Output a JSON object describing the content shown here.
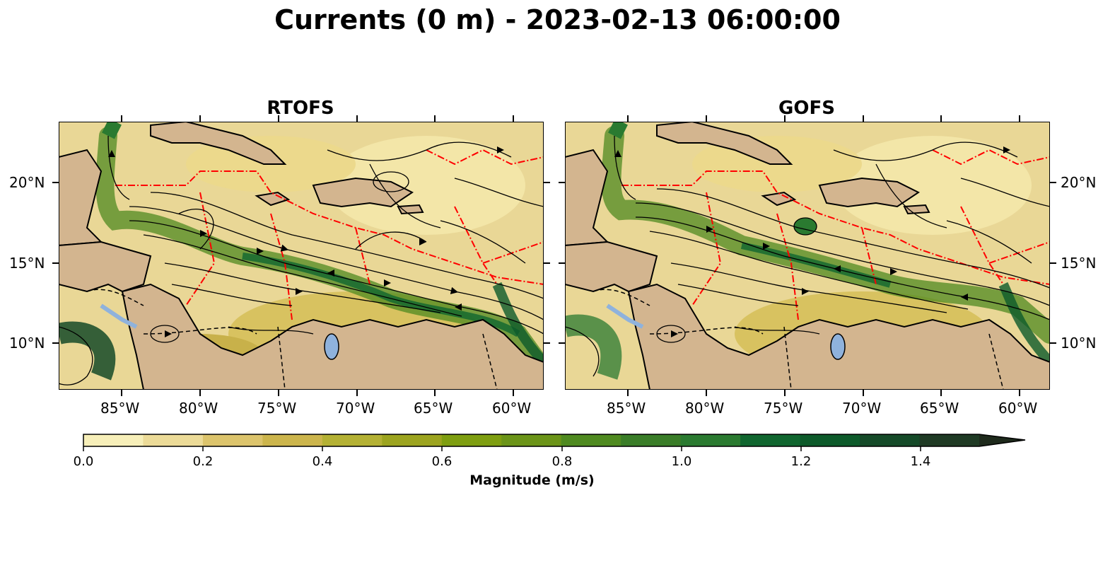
{
  "title": "Currents (0 m) - 2023-02-13 06:00:00",
  "panels": [
    {
      "id": "rtofs",
      "title": "RTOFS"
    },
    {
      "id": "gofs",
      "title": "GOFS"
    }
  ],
  "lon_ticks": [
    "85°W",
    "80°W",
    "75°W",
    "70°W",
    "65°W",
    "60°W"
  ],
  "lat_ticks": [
    "20°N",
    "15°N",
    "10°N"
  ],
  "colorbar": {
    "label": "Magnitude (m/s)",
    "tick_labels": [
      "0.0",
      "0.2",
      "0.4",
      "0.6",
      "0.8",
      "1.0",
      "1.2",
      "1.4"
    ],
    "extend": "max",
    "colors": [
      "#f7efb9",
      "#ecdb98",
      "#dcc46c",
      "#ccb54c",
      "#b4b134",
      "#9ca41f",
      "#7e9e10",
      "#6b9418",
      "#4f8a20",
      "#3a7d28",
      "#2a7a30",
      "#10662f",
      "#0d5a2a",
      "#154a28",
      "#1f3a24",
      "#1e2a1c"
    ]
  },
  "map_colors": {
    "land": "#d3b58f",
    "lake": "#8fb2dc",
    "river": "#9fb2c8",
    "border": "#000000",
    "eez": "#ff0000"
  }
}
